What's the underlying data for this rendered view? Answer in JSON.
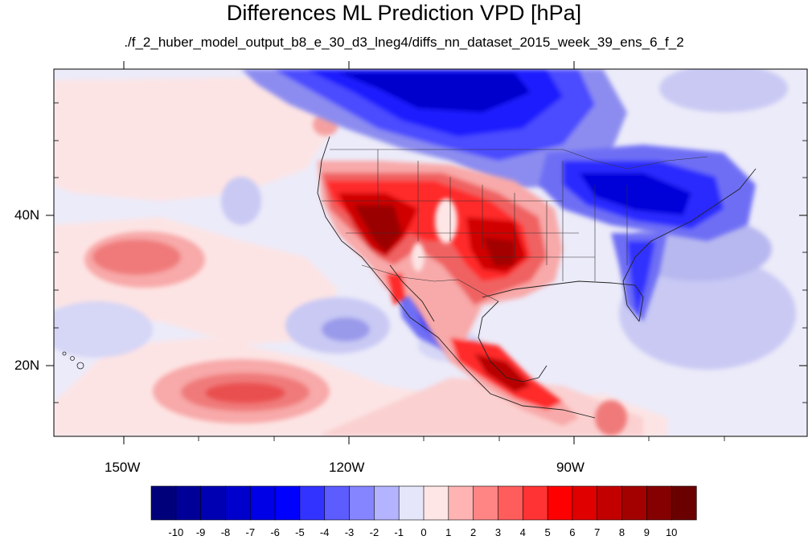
{
  "title": "Differences ML Prediction VPD [hPa]",
  "subtitle": "./f_2_huber_model_output_b8_e_30_d3_lneg4/diffs_nn_dataset_2015_week_39_ens_6_f_2",
  "map": {
    "projection": "cylindrical-equidistant",
    "lon_range": [
      -160,
      -60
    ],
    "lat_range": [
      10,
      59
    ],
    "region": "North America and adjacent Pacific/Atlantic",
    "x_ticks": [
      {
        "lon": -150,
        "label": "150W"
      },
      {
        "lon": -120,
        "label": "120W"
      },
      {
        "lon": -90,
        "label": "90W"
      }
    ],
    "y_ticks": [
      {
        "lat": 40,
        "label": "40N"
      },
      {
        "lat": 20,
        "label": "20N"
      }
    ],
    "features": {
      "positive_anomaly_regions": [
        "western US interior",
        "southern Great Plains",
        "central Mexico",
        "subtropical Pacific near 20N 140W"
      ],
      "negative_anomaly_regions": [
        "central Canada",
        "Great Lakes and northeastern US",
        "Florida and southeastern US",
        "Gulf of California coast"
      ]
    }
  },
  "colorbar": {
    "labels": [
      "-10",
      "-9",
      "-8",
      "-7",
      "-6",
      "-5",
      "-4",
      "-3",
      "-2",
      "-1",
      "0",
      "1",
      "2",
      "3",
      "4",
      "5",
      "6",
      "7",
      "8",
      "9",
      "10"
    ],
    "colors": [
      "#00007a",
      "#000099",
      "#0000b3",
      "#0000cc",
      "#0000e6",
      "#0000ff",
      "#3333ff",
      "#5c5cff",
      "#8585ff",
      "#b3b3ff",
      "#e6e6fa",
      "#ffe6e6",
      "#ffb3b3",
      "#ff8585",
      "#ff5c5c",
      "#ff3333",
      "#ff0000",
      "#e00000",
      "#c20000",
      "#a30000",
      "#850000",
      "#6b0000"
    ]
  }
}
